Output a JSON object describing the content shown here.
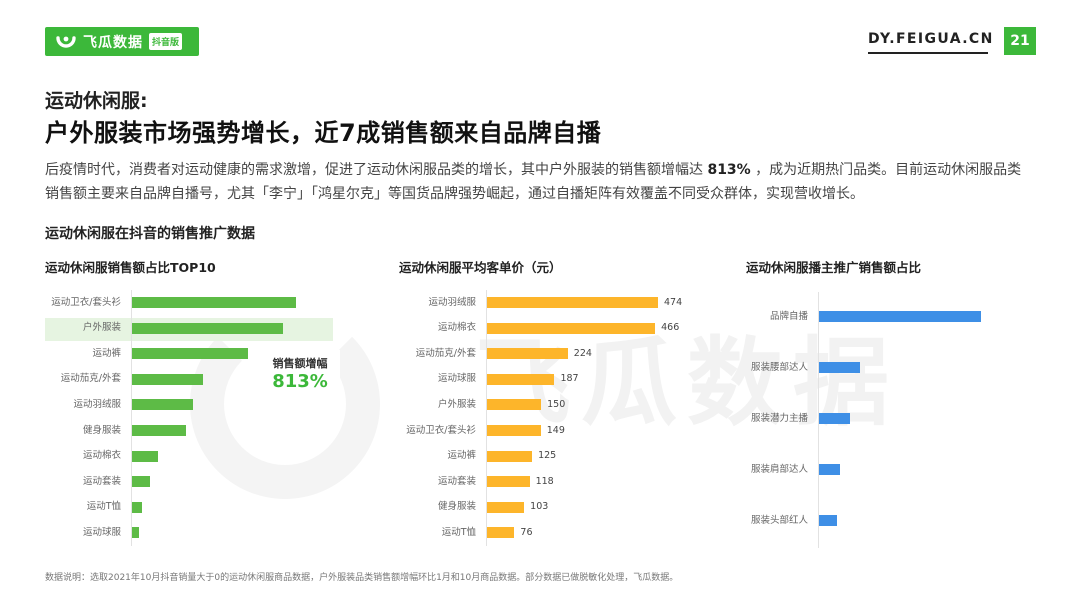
{
  "brand": {
    "name": "飞瓜数据",
    "tag": "抖音版",
    "site": "DY.FEIGUA.CN",
    "page_number": "21",
    "color": "#3cb83a"
  },
  "header": {
    "kicker": "运动休闲服:",
    "headline": "户外服装市场强势增长，近7成销售额来自品牌自播"
  },
  "description": {
    "part1": "后疫情时代，消费者对运动健康的需求激增，促进了运动休闲服品类的增长，其中户外服装的销售额增幅达 ",
    "highlight": "813%",
    "part2": " ，成为近期热门品类。目前运动休闲服品类销售额主要来自品牌自播号，尤其「李宁」「鸿星尔克」等国货品牌强势崛起，通过自播矩阵有效覆盖不同受众群体，实现营收增长。"
  },
  "section_title": "运动休闲服在抖音的销售推广数据",
  "watermark": "飞瓜数据",
  "callout": {
    "label": "销售额增幅",
    "value": "813%"
  },
  "footnote": "数据说明：选取2021年10月抖音销量大于0的运动休闲服商品数据，户外服装品类销售额增幅环比1月和10月商品数据。部分数据已做脱敏化处理，飞瓜数据。",
  "chart_data": [
    {
      "type": "bar",
      "orientation": "horizontal",
      "title": "运动休闲服销售额占比TOP10",
      "color": "#5dbb46",
      "highlight_category": "户外服装",
      "categories": [
        "运动卫衣/套头衫",
        "户外服装",
        "运动裤",
        "运动茄克/外套",
        "运动羽绒服",
        "健身服装",
        "运动棉衣",
        "运动套装",
        "运动T恤",
        "运动球服"
      ],
      "values": [
        100,
        92,
        71,
        43,
        37,
        33,
        16,
        11,
        6,
        4
      ],
      "value_labels": false
    },
    {
      "type": "bar",
      "orientation": "horizontal",
      "title": "运动休闲服平均客单价（元）",
      "color": "#fdb52a",
      "categories": [
        "运动羽绒服",
        "运动棉衣",
        "运动茄克/外套",
        "运动球服",
        "户外服装",
        "运动卫衣/套头衫",
        "运动裤",
        "运动套装",
        "健身服装",
        "运动T恤"
      ],
      "values": [
        474,
        466,
        224,
        187,
        150,
        149,
        125,
        118,
        103,
        76
      ],
      "value_labels": true
    },
    {
      "type": "bar",
      "orientation": "horizontal",
      "title": "运动休闲服播主推广销售额占比",
      "color": "#3e8fe6",
      "categories": [
        "品牌自播",
        "服装腰部达人",
        "服装潜力主播",
        "服装肩部达人",
        "服装头部红人"
      ],
      "values": [
        100,
        25,
        19,
        13,
        11
      ],
      "value_labels": false
    }
  ]
}
